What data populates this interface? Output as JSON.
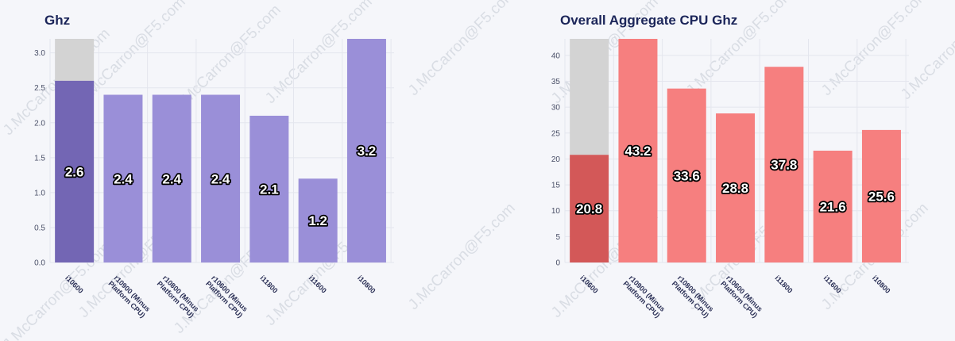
{
  "watermark": "J.McCarron@F5.com",
  "colors": {
    "purple": "#9a8fd8",
    "purple_highlight": "#7366b4",
    "red": "#f67f7f",
    "red_highlight": "#d35858",
    "overflow_gray": "#d3d3d3"
  },
  "chart_data": [
    {
      "type": "bar",
      "title": "Ghz",
      "categories": [
        "i10600",
        "r10900 (Minus Platform CPU)",
        "r10800 (Minus Platform CPU)",
        "r10600 (Minus Platform CPU)",
        "i11800",
        "i11600",
        "i10800"
      ],
      "values": [
        2.6,
        2.4,
        2.4,
        2.4,
        2.1,
        1.2,
        3.2
      ],
      "data_labels": [
        "2.6",
        "2.4",
        "2.4",
        "2.4",
        "2.1",
        "1.2",
        "3.2"
      ],
      "highlight_index": 0,
      "ylim": [
        0,
        3.2
      ],
      "yticks": [
        0,
        0.5,
        1,
        1.5,
        2,
        2.5,
        3
      ],
      "ytick_labels": [
        "0.0",
        "0.5",
        "1.0",
        "1.5",
        "2.0",
        "2.5",
        "3.0"
      ],
      "grid": true
    },
    {
      "type": "bar",
      "title": "Overall Aggregate CPU Ghz",
      "categories": [
        "i10600",
        "r10900 (Minus Platform CPU)",
        "r10800 (Minus Platform CPU)",
        "r10600 (Minus Platform CPU)",
        "i11800",
        "i11600",
        "i10800"
      ],
      "values": [
        20.8,
        43.2,
        33.6,
        28.8,
        37.8,
        21.6,
        25.6
      ],
      "data_labels": [
        "20.8",
        "43.2",
        "33.6",
        "28.8",
        "37.8",
        "21.6",
        "25.6"
      ],
      "highlight_index": 0,
      "ylim": [
        0,
        43.2
      ],
      "yticks": [
        0,
        5,
        10,
        15,
        20,
        25,
        30,
        35,
        40
      ],
      "ytick_labels": [
        "0",
        "5",
        "10",
        "15",
        "20",
        "25",
        "30",
        "35",
        "40"
      ],
      "grid": true
    }
  ]
}
